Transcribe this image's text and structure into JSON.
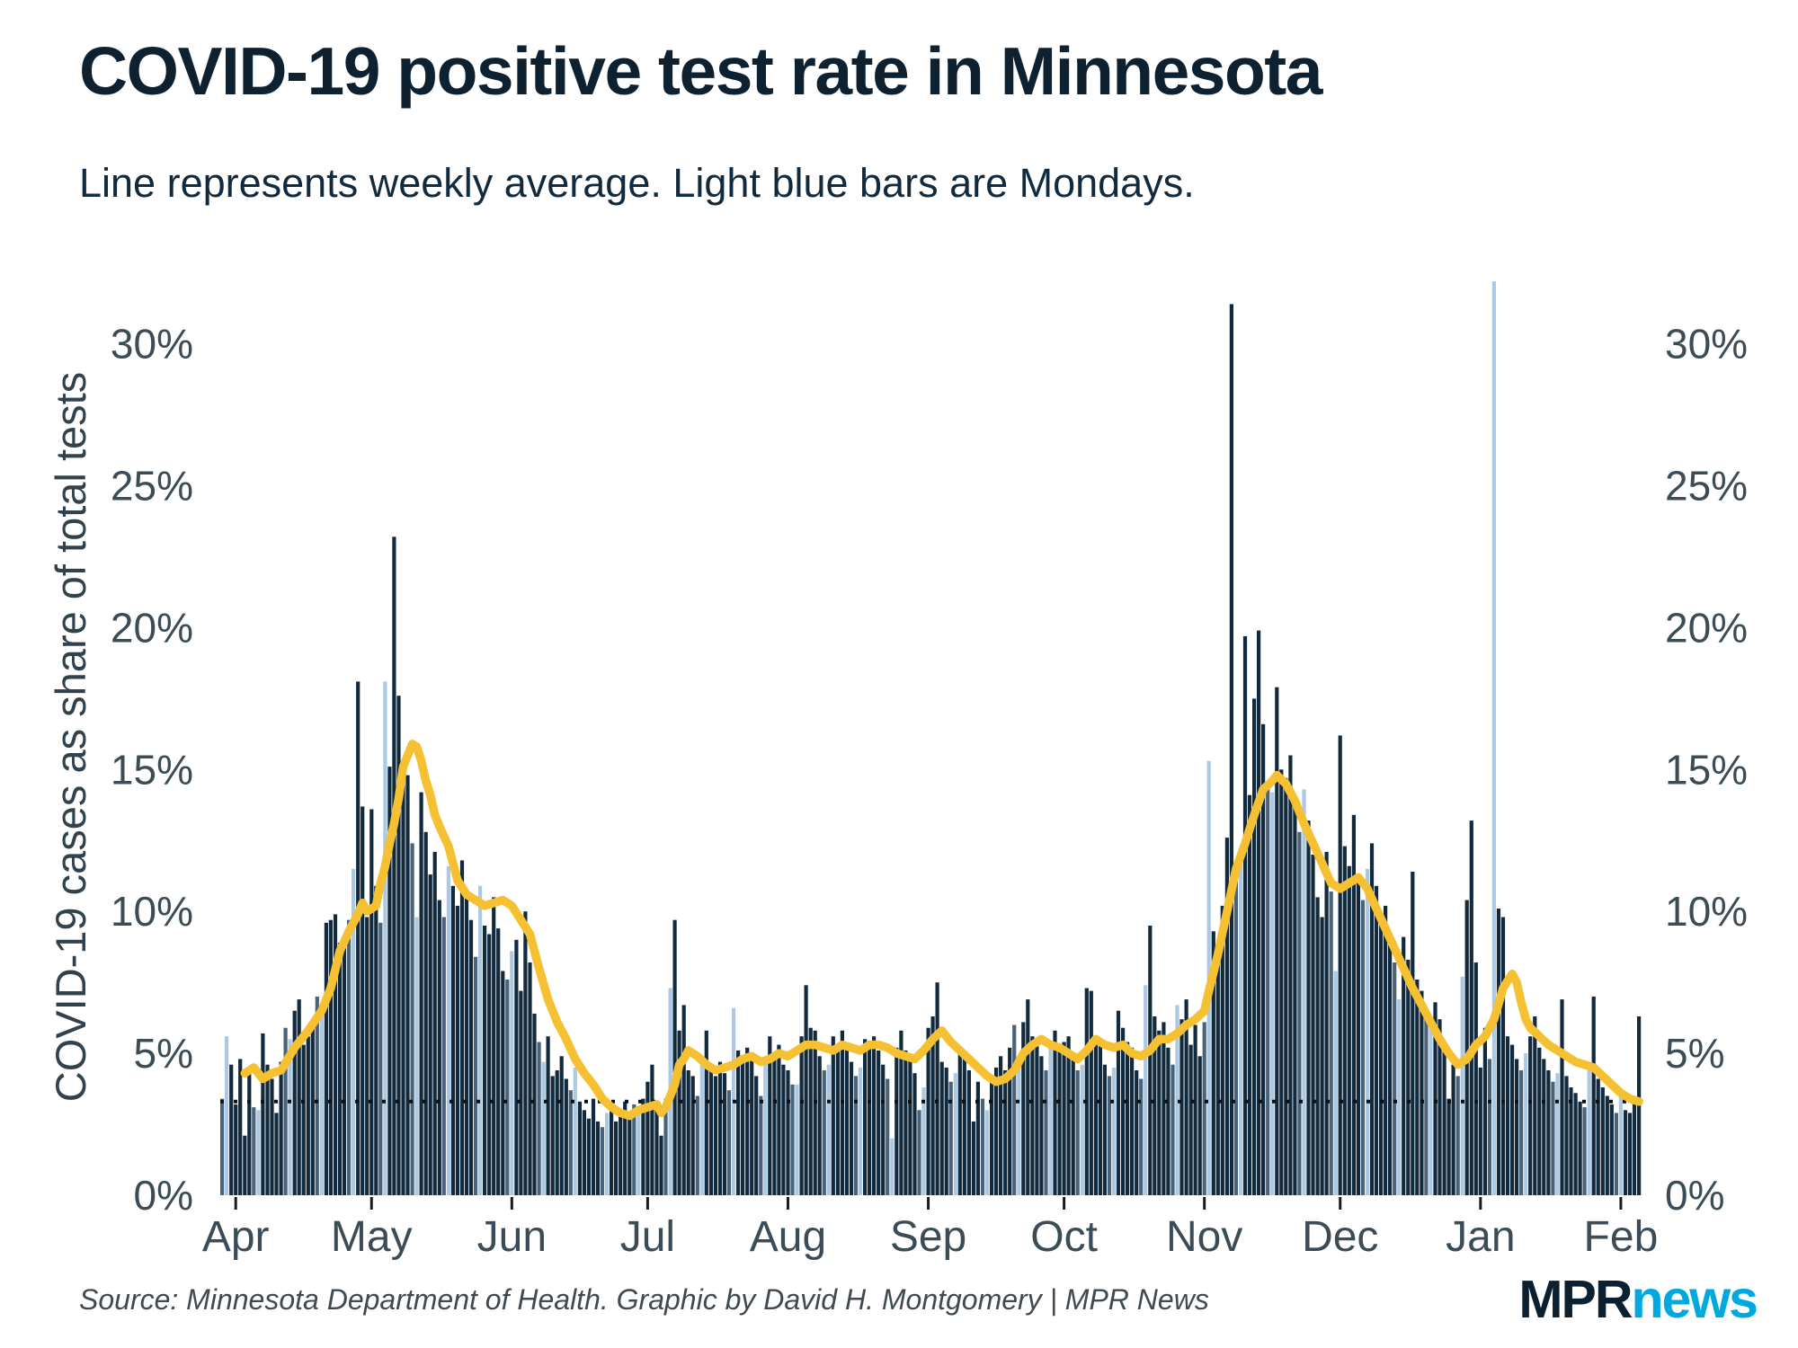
{
  "header": {
    "title": "COVID-19 positive test rate in Minnesota",
    "subtitle": "Line represents weekly average. Light blue bars are Mondays."
  },
  "footer": {
    "source": "Source: Minnesota Department of Health. Graphic by David H. Montgomery | MPR News",
    "logo_mpr": "MPR",
    "logo_news": "news"
  },
  "chart_data": {
    "type": "bar",
    "title": "COVID-19 positive test rate in Minnesota",
    "subtitle": "Line represents weekly average. Light blue bars are Mondays.",
    "ylabel": "COVID-19 cases as share of total tests",
    "xlabel": "",
    "ylim": [
      0,
      32.3
    ],
    "grid": false,
    "legend": "none",
    "y_ticks": [
      {
        "value": 0,
        "label": "0%"
      },
      {
        "value": 5,
        "label": "5%"
      },
      {
        "value": 10,
        "label": "10%"
      },
      {
        "value": 15,
        "label": "15%"
      },
      {
        "value": 20,
        "label": "20%"
      },
      {
        "value": 25,
        "label": "25%"
      },
      {
        "value": 30,
        "label": "30%"
      }
    ],
    "x_ticks_months": [
      {
        "label": "Apr",
        "day_index": 3
      },
      {
        "label": "May",
        "day_index": 33
      },
      {
        "label": "Jun",
        "day_index": 64
      },
      {
        "label": "Jul",
        "day_index": 94
      },
      {
        "label": "Aug",
        "day_index": 125
      },
      {
        "label": "Sep",
        "day_index": 156
      },
      {
        "label": "Oct",
        "day_index": 186
      },
      {
        "label": "Nov",
        "day_index": 217
      },
      {
        "label": "Dec",
        "day_index": 247
      },
      {
        "label": "Jan",
        "day_index": 278
      },
      {
        "label": "Feb",
        "day_index": 309
      }
    ],
    "daily": {
      "start_date": "2020-03-29",
      "monday_rule": "index % 7 == 1 (light blue bars)",
      "sunday_rule": "index % 7 == 0 (muted slate bars)",
      "unit": "percent positive",
      "values": [
        3.4,
        5.6,
        4.6,
        3.2,
        4.8,
        2.1,
        4.4,
        3.1,
        3.0,
        5.7,
        4.6,
        4.1,
        2.9,
        4.7,
        5.9,
        5.5,
        6.5,
        6.9,
        5.3,
        5.6,
        5.9,
        7.0,
        6.3,
        9.6,
        9.7,
        9.9,
        8.9,
        8.8,
        9.7,
        11.5,
        18.1,
        13.7,
        9.8,
        13.6,
        10.9,
        9.6,
        18.1,
        15.1,
        23.2,
        17.6,
        14.9,
        14.8,
        12.4,
        9.8,
        14.2,
        12.8,
        11.3,
        12.1,
        10.4,
        9.8,
        11.6,
        10.9,
        10.2,
        11.8,
        10.6,
        9.7,
        8.4,
        10.9,
        9.5,
        9.2,
        10.5,
        9.4,
        7.9,
        7.6,
        8.6,
        9.0,
        7.2,
        10.0,
        8.2,
        6.4,
        5.4,
        4.7,
        5.6,
        4.2,
        4.4,
        4.9,
        4.1,
        3.7,
        4.5,
        3.3,
        3.0,
        2.7,
        3.4,
        2.6,
        2.4,
        2.9,
        3.1,
        2.6,
        3.0,
        3.3,
        2.7,
        3.2,
        3.1,
        3.4,
        4.0,
        4.6,
        3.1,
        2.1,
        3.4,
        7.3,
        9.7,
        5.8,
        6.7,
        4.4,
        4.2,
        3.5,
        4.9,
        5.8,
        4.5,
        4.2,
        4.7,
        4.3,
        3.7,
        6.6,
        5.1,
        4.7,
        5.2,
        4.8,
        4.2,
        3.5,
        4.7,
        5.6,
        5.0,
        5.3,
        4.6,
        4.4,
        3.9,
        3.9,
        5.6,
        7.4,
        5.9,
        5.8,
        4.9,
        4.4,
        4.6,
        5.6,
        5.3,
        5.8,
        5.3,
        4.7,
        4.2,
        4.5,
        5.5,
        5.2,
        5.6,
        5.1,
        4.6,
        4.1,
        2.0,
        5.2,
        5.8,
        5.1,
        4.8,
        4.3,
        3.0,
        3.8,
        5.9,
        6.3,
        7.5,
        4.7,
        4.5,
        4.0,
        4.3,
        5.0,
        4.8,
        4.4,
        2.6,
        4.0,
        3.4,
        3.0,
        4.2,
        4.5,
        4.9,
        4.4,
        5.2,
        6.0,
        4.8,
        6.1,
        6.9,
        5.6,
        5.5,
        4.9,
        4.4,
        5.2,
        5.8,
        5.2,
        5.4,
        5.6,
        4.9,
        4.4,
        4.6,
        7.3,
        7.2,
        5.6,
        5.3,
        4.6,
        4.2,
        4.5,
        6.5,
        5.9,
        5.4,
        5.2,
        4.4,
        4.1,
        7.4,
        9.5,
        6.3,
        5.8,
        6.1,
        5.2,
        4.6,
        6.7,
        6.2,
        6.9,
        5.3,
        6.0,
        4.9,
        6.1,
        15.3,
        9.3,
        8.6,
        10.2,
        12.6,
        31.4,
        11.4,
        11.8,
        19.7,
        14.1,
        17.5,
        19.9,
        16.6,
        14.4,
        14.2,
        17.9,
        15.0,
        14.7,
        15.5,
        13.7,
        12.8,
        14.3,
        13.2,
        12.0,
        10.5,
        9.8,
        12.1,
        10.7,
        7.9,
        16.2,
        12.3,
        11.6,
        13.4,
        11.2,
        10.4,
        11.5,
        12.4,
        10.9,
        9.6,
        10.2,
        8.8,
        8.2,
        6.9,
        9.1,
        8.3,
        11.4,
        7.6,
        7.2,
        6.4,
        5.9,
        6.8,
        6.2,
        5.3,
        3.4,
        4.6,
        4.2,
        7.7,
        10.4,
        13.2,
        8.2,
        4.5,
        5.9,
        4.8,
        32.2,
        10.1,
        9.8,
        5.6,
        5.3,
        4.8,
        4.4,
        5.0,
        5.6,
        6.3,
        5.2,
        4.8,
        4.4,
        4.0,
        4.3,
        6.9,
        4.2,
        3.8,
        3.6,
        3.3,
        3.1,
        4.4,
        7.0,
        4.1,
        3.8,
        3.5,
        3.2,
        2.9,
        3.6,
        3.0,
        2.9,
        3.4,
        6.3
      ]
    },
    "weekly_average_line": {
      "description": "7-day average of positive test rate, percent",
      "anchors_day_value": [
        [
          5,
          4.3
        ],
        [
          7,
          4.5
        ],
        [
          9,
          4.1
        ],
        [
          11,
          4.3
        ],
        [
          13,
          4.4
        ],
        [
          16,
          5.2
        ],
        [
          19,
          5.8
        ],
        [
          22,
          6.5
        ],
        [
          24,
          7.3
        ],
        [
          26,
          8.6
        ],
        [
          28,
          9.3
        ],
        [
          30,
          9.9
        ],
        [
          31,
          10.3
        ],
        [
          32,
          10.0
        ],
        [
          34,
          10.2
        ],
        [
          35,
          11.0
        ],
        [
          36,
          11.6
        ],
        [
          37,
          12.4
        ],
        [
          38,
          13.1
        ],
        [
          39,
          14.0
        ],
        [
          40,
          15.1
        ],
        [
          41,
          15.5
        ],
        [
          42,
          15.9
        ],
        [
          43,
          15.8
        ],
        [
          44,
          15.3
        ],
        [
          45,
          14.6
        ],
        [
          46,
          14.1
        ],
        [
          47,
          13.4
        ],
        [
          48,
          13.0
        ],
        [
          50,
          12.3
        ],
        [
          52,
          11.1
        ],
        [
          54,
          10.6
        ],
        [
          56,
          10.4
        ],
        [
          58,
          10.2
        ],
        [
          60,
          10.3
        ],
        [
          62,
          10.4
        ],
        [
          64,
          10.2
        ],
        [
          66,
          9.7
        ],
        [
          68,
          9.2
        ],
        [
          70,
          8.0
        ],
        [
          72,
          6.9
        ],
        [
          74,
          6.1
        ],
        [
          76,
          5.5
        ],
        [
          78,
          4.8
        ],
        [
          80,
          4.3
        ],
        [
          82,
          3.9
        ],
        [
          84,
          3.4
        ],
        [
          86,
          3.1
        ],
        [
          88,
          2.9
        ],
        [
          90,
          2.8
        ],
        [
          92,
          3.0
        ],
        [
          94,
          3.1
        ],
        [
          96,
          3.2
        ],
        [
          97,
          2.9
        ],
        [
          98,
          3.1
        ],
        [
          100,
          3.9
        ],
        [
          101,
          4.6
        ],
        [
          102,
          4.8
        ],
        [
          103,
          5.1
        ],
        [
          105,
          4.9
        ],
        [
          107,
          4.6
        ],
        [
          109,
          4.4
        ],
        [
          111,
          4.5
        ],
        [
          113,
          4.6
        ],
        [
          115,
          4.8
        ],
        [
          117,
          4.9
        ],
        [
          119,
          4.7
        ],
        [
          121,
          4.8
        ],
        [
          123,
          5.0
        ],
        [
          125,
          4.9
        ],
        [
          127,
          5.1
        ],
        [
          129,
          5.3
        ],
        [
          131,
          5.3
        ],
        [
          133,
          5.2
        ],
        [
          135,
          5.1
        ],
        [
          137,
          5.3
        ],
        [
          139,
          5.2
        ],
        [
          141,
          5.1
        ],
        [
          143,
          5.3
        ],
        [
          145,
          5.3
        ],
        [
          147,
          5.2
        ],
        [
          149,
          5.0
        ],
        [
          151,
          4.9
        ],
        [
          153,
          4.8
        ],
        [
          155,
          5.1
        ],
        [
          157,
          5.5
        ],
        [
          159,
          5.8
        ],
        [
          161,
          5.4
        ],
        [
          163,
          5.1
        ],
        [
          165,
          4.8
        ],
        [
          167,
          4.5
        ],
        [
          169,
          4.2
        ],
        [
          171,
          4.0
        ],
        [
          173,
          4.1
        ],
        [
          175,
          4.4
        ],
        [
          177,
          5.0
        ],
        [
          179,
          5.3
        ],
        [
          181,
          5.5
        ],
        [
          183,
          5.3
        ],
        [
          185,
          5.2
        ],
        [
          187,
          5.0
        ],
        [
          189,
          4.8
        ],
        [
          191,
          5.1
        ],
        [
          193,
          5.5
        ],
        [
          195,
          5.3
        ],
        [
          197,
          5.2
        ],
        [
          199,
          5.3
        ],
        [
          201,
          5.0
        ],
        [
          203,
          4.9
        ],
        [
          205,
          5.1
        ],
        [
          207,
          5.5
        ],
        [
          209,
          5.5
        ],
        [
          211,
          5.7
        ],
        [
          213,
          6.0
        ],
        [
          215,
          6.2
        ],
        [
          217,
          6.5
        ],
        [
          218,
          7.2
        ],
        [
          220,
          8.5
        ],
        [
          222,
          10.0
        ],
        [
          224,
          11.5
        ],
        [
          226,
          12.4
        ],
        [
          228,
          13.4
        ],
        [
          230,
          14.3
        ],
        [
          232,
          14.6
        ],
        [
          233,
          14.8
        ],
        [
          235,
          14.5
        ],
        [
          237,
          13.9
        ],
        [
          239,
          13.1
        ],
        [
          241,
          12.4
        ],
        [
          243,
          11.7
        ],
        [
          245,
          11.0
        ],
        [
          247,
          10.8
        ],
        [
          249,
          11.0
        ],
        [
          251,
          11.2
        ],
        [
          253,
          10.8
        ],
        [
          255,
          10.1
        ],
        [
          257,
          9.4
        ],
        [
          259,
          8.7
        ],
        [
          261,
          8.0
        ],
        [
          263,
          7.3
        ],
        [
          265,
          6.7
        ],
        [
          267,
          6.1
        ],
        [
          269,
          5.5
        ],
        [
          271,
          5.0
        ],
        [
          273,
          4.6
        ],
        [
          275,
          4.8
        ],
        [
          277,
          5.3
        ],
        [
          279,
          5.6
        ],
        [
          281,
          6.2
        ],
        [
          283,
          7.3
        ],
        [
          285,
          7.8
        ],
        [
          286,
          7.5
        ],
        [
          287,
          6.8
        ],
        [
          288,
          6.2
        ],
        [
          289,
          5.9
        ],
        [
          291,
          5.6
        ],
        [
          293,
          5.3
        ],
        [
          295,
          5.1
        ],
        [
          297,
          4.9
        ],
        [
          299,
          4.7
        ],
        [
          301,
          4.6
        ],
        [
          303,
          4.5
        ],
        [
          305,
          4.2
        ],
        [
          307,
          3.9
        ],
        [
          309,
          3.6
        ],
        [
          311,
          3.4
        ],
        [
          313,
          3.3
        ]
      ]
    },
    "reference_dotted_line": {
      "value": 3.3,
      "style": "black dotted horizontal line"
    },
    "colors": {
      "bar_dark_navy": "#122a3d",
      "bar_monday_light_blue": "#abc9e3",
      "bar_sunday_slate": "#4a6378",
      "weekly_average_gold": "#f5c032",
      "dotted_reference": "#101010",
      "axis_text": "#3b4c56",
      "title_text": "#0d2130",
      "logo_navy": "#0c2030",
      "logo_cyan": "#00a8e0"
    }
  }
}
